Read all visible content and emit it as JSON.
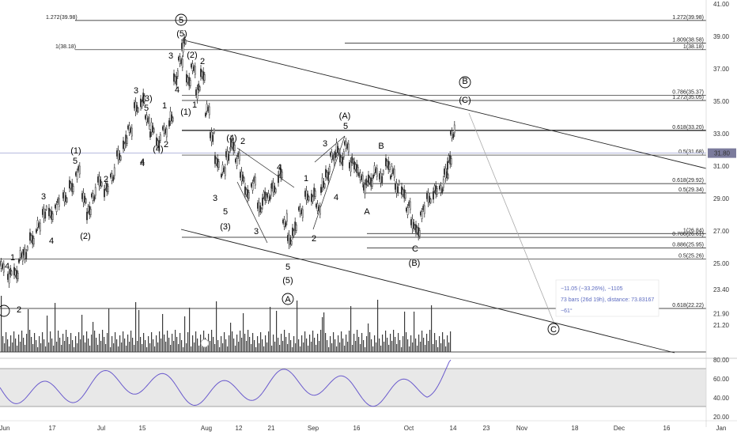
{
  "chart_data": {
    "type": "candlestick",
    "price_axis": {
      "ticks": [
        "41.00",
        "39.00",
        "37.00",
        "35.00",
        "33.00",
        "31.00",
        "29.00",
        "27.00",
        "25.00",
        "23.40",
        "21.90",
        "21.20"
      ],
      "last_price": "31.80"
    },
    "rsi_axis": {
      "ticks": [
        "80.00",
        "60.00",
        "40.00",
        "20.00"
      ],
      "band": [
        30,
        70
      ]
    },
    "time_axis": {
      "labels": [
        "Jun",
        "17",
        "Jul",
        "15",
        "Aug",
        "12",
        "21",
        "Sep",
        "16",
        "Oct",
        "14",
        "23",
        "Nov",
        "18",
        "Dec",
        "16",
        "Jan"
      ]
    },
    "fib_levels": [
      {
        "label": "1.272(39.98)",
        "price": 39.98
      },
      {
        "label": "1(38.18)",
        "price": 38.18
      },
      {
        "label": "1.809(38.58)",
        "price": 38.58
      },
      {
        "label": "0.786(35.37)",
        "price": 35.37
      },
      {
        "label": "1.272(35.05)",
        "price": 35.05
      },
      {
        "label": "0.618(33.20)",
        "price": 33.2
      },
      {
        "label": "0.5(31.68)",
        "price": 31.68
      },
      {
        "label": "0.618(29.92)",
        "price": 29.92
      },
      {
        "label": "0.5(29.34)",
        "price": 29.34
      },
      {
        "label": "1(26.84)",
        "price": 26.84
      },
      {
        "label": "0.786(26.61)",
        "price": 26.61
      },
      {
        "label": "0.886(25.95)",
        "price": 25.95
      },
      {
        "label": "0.5(25.26)",
        "price": 25.26
      },
      {
        "label": "0.618(22.22)",
        "price": 22.22
      }
    ],
    "wave_labels": [
      "5",
      "(5)",
      "3",
      "4",
      "(2)",
      "2",
      "1",
      "(1)",
      "3",
      "(3)",
      "5",
      "4",
      "1",
      "(4)",
      "2",
      "(1)",
      "5",
      "3",
      "4",
      "(2)",
      "2",
      "4",
      "(4)",
      "2",
      "3",
      "5",
      "(3)",
      "3",
      "4",
      "5",
      "(5)",
      "A",
      "(A)",
      "5",
      "3",
      "1",
      "2",
      "4",
      "B",
      "A",
      "C",
      "(B)",
      "B",
      "(C)",
      "C",
      "2",
      "1",
      "4"
    ],
    "measure_info": {
      "line1": "−11.05 (−33.26%), −1105",
      "line2": "73 bars (26d 19h), distance: 73.83167",
      "line3": "−61°"
    },
    "colors": {
      "candle": "#333333",
      "rsi": "#6a5acd",
      "band": "#d8d8d8",
      "last_price_bg": "#7b7b9c",
      "last_price_line": "#9da3d4",
      "measure": "#5c6bc0"
    }
  }
}
